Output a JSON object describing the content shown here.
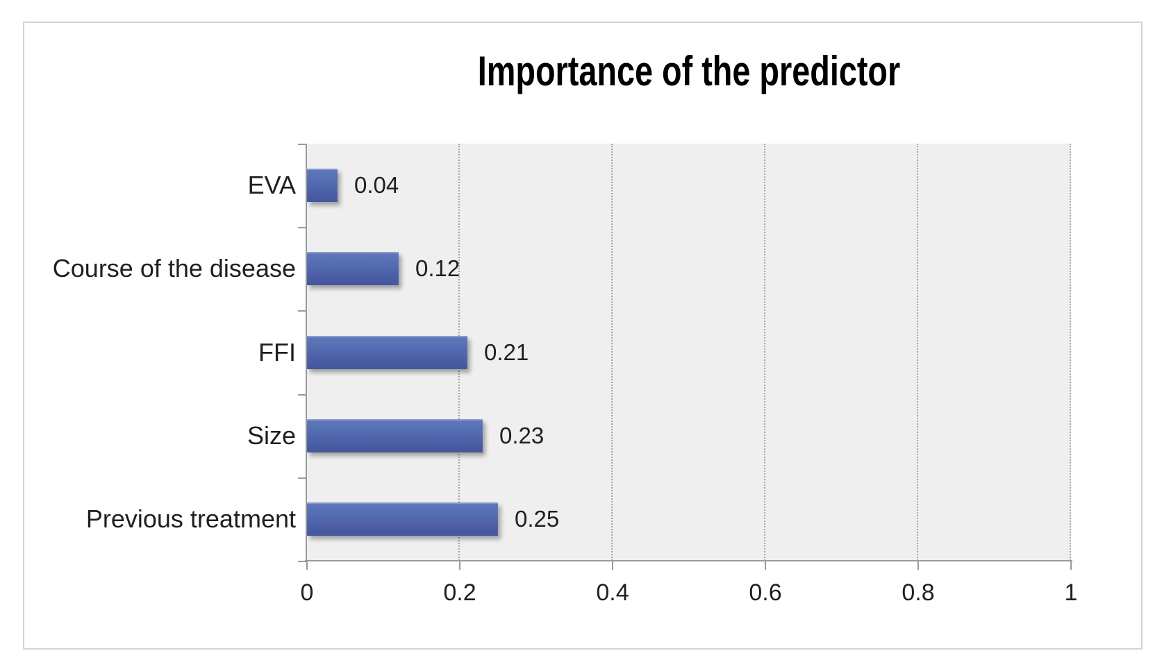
{
  "chart_data": {
    "type": "bar",
    "orientation": "horizontal",
    "title": "Importance of the predictor",
    "categories": [
      "EVA",
      "Course of the disease",
      "FFI",
      "Size",
      "Previous treatment"
    ],
    "values": [
      0.04,
      0.12,
      0.21,
      0.23,
      0.25
    ],
    "data_labels": [
      "0.04",
      "0.12",
      "0.21",
      "0.23",
      "0.25"
    ],
    "x_ticks": [
      {
        "label": "0",
        "value": 0
      },
      {
        "label": "0.2",
        "value": 0.2
      },
      {
        "label": "0.4",
        "value": 0.4
      },
      {
        "label": "0.6",
        "value": 0.6
      },
      {
        "label": "0.8",
        "value": 0.8
      },
      {
        "label": "1",
        "value": 1
      }
    ],
    "xlim": [
      0,
      1
    ],
    "grid": "vertical-dotted-at-0.2-intervals",
    "legend": "none",
    "colors": {
      "bar_gradient_top": "#6078bb",
      "bar_gradient_bottom": "#44579d",
      "plot_background": "#efefef",
      "axis_line": "#9a9a9a",
      "gridline": "#a6a6a6",
      "frame_border": "#d5d5d5",
      "text": "#1f1f1f",
      "title_text": "#000000"
    }
  }
}
